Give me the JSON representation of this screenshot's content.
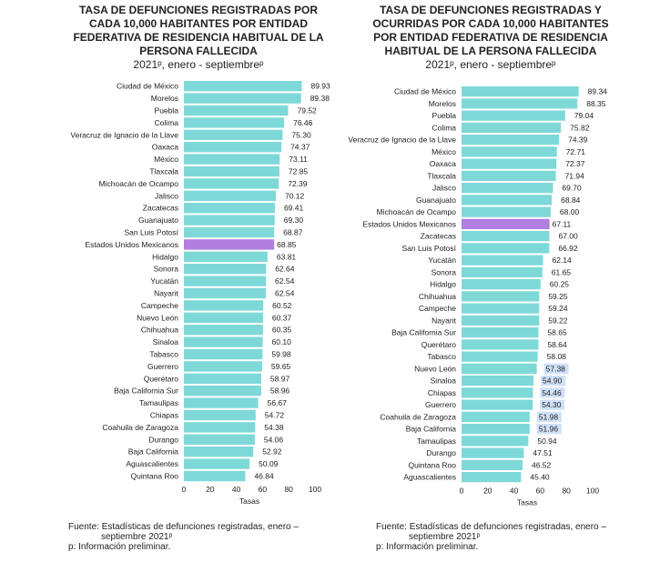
{
  "chart_data": [
    {
      "type": "bar",
      "orientation": "horizontal",
      "title": "TASA DE DEFUNCIONES REGISTRADAS POR CADA 10,000 HABITANTES POR ENTIDAD FEDERATIVA DE RESIDENCIA HABITUAL DE LA PERSONA FALLECIDA",
      "subtitle": "2021ᵖ, enero - septiembreᵖ",
      "xlabel": "Tasas",
      "xlim": [
        0,
        100
      ],
      "xticks": [
        "0",
        "20",
        "40",
        "60",
        "80",
        "100"
      ],
      "highlight": "Estados Unidos Mexicanos",
      "categories": [
        "Ciudad de México",
        "Morelos",
        "Puebla",
        "Colima",
        "Veracruz de Ignacio de la Llave",
        "Oaxaca",
        "México",
        "Tlaxcala",
        "Michoacán de Ocampo",
        "Jalisco",
        "Zacatecas",
        "Guanajuato",
        "San Luis Potosí",
        "Estados Unidos Mexicanos",
        "Hidalgo",
        "Sonora",
        "Yucatán",
        "Nayarit",
        "Campeche",
        "Nuevo León",
        "Chihuahua",
        "Sinaloa",
        "Tabasco",
        "Guerrero",
        "Querétaro",
        "Baja California Sur",
        "Tamaulipas",
        "Chiapas",
        "Coahuila de Zaragoza",
        "Durango",
        "Baja California",
        "Aguascalientes",
        "Quintana Roo"
      ],
      "values": [
        89.93,
        89.38,
        79.52,
        76.46,
        75.3,
        74.37,
        73.11,
        72.85,
        72.39,
        70.12,
        69.41,
        69.3,
        68.87,
        68.85,
        63.81,
        62.64,
        62.54,
        62.54,
        60.52,
        60.37,
        60.35,
        60.1,
        59.98,
        59.65,
        58.97,
        58.96,
        56.67,
        54.72,
        54.38,
        54.06,
        52.92,
        50.09,
        46.84
      ],
      "selected_labels": []
    },
    {
      "type": "bar",
      "orientation": "horizontal",
      "title": "TASA DE DEFUNCIONES REGISTRADAS Y OCURRIDAS POR CADA 10,000 HABITANTES POR ENTIDAD FEDERATIVA DE RESIDENCIA HABITUAL DE LA PERSONA FALLECIDA",
      "subtitle": "2021ᵖ, enero - septiembreᵖ",
      "xlabel": "Tasas",
      "xlim": [
        0,
        100
      ],
      "xticks": [
        "0",
        "20",
        "40",
        "60",
        "80",
        "100"
      ],
      "highlight": "Estados Unidos Mexicanos",
      "categories": [
        "Ciudad de México",
        "Morelos",
        "Puebla",
        "Colima",
        "Veracruz de Ignacio de la Llave",
        "México",
        "Oaxaca",
        "Tlaxcala",
        "Jalisco",
        "Guanajuato",
        "Michoacán de Ocampo",
        "Estados Unidos Mexicanos",
        "Zacatecas",
        "San Luis Potosí",
        "Yucatán",
        "Sonora",
        "Hidalgo",
        "Chihuahua",
        "Campeche",
        "Nayarit",
        "Baja California Sur",
        "Querétaro",
        "Tabasco",
        "Nuevo León",
        "Sinaloa",
        "Chiapas",
        "Guerrero",
        "Coahuila de Zaragoza",
        "Baja California",
        "Tamaulipas",
        "Durango",
        "Quintana Roo",
        "Aguascalientes"
      ],
      "values": [
        89.34,
        88.35,
        79.04,
        75.82,
        74.39,
        72.71,
        72.37,
        71.94,
        69.7,
        68.84,
        68.0,
        67.11,
        67.0,
        66.92,
        62.14,
        61.65,
        60.25,
        59.25,
        59.24,
        59.22,
        58.65,
        58.64,
        58.08,
        57.38,
        54.9,
        54.46,
        54.3,
        51.98,
        51.96,
        50.94,
        47.51,
        46.52,
        45.4
      ],
      "selected_labels": [
        "Nuevo León",
        "Sinaloa",
        "Chiapas",
        "Guerrero",
        "Coahuila de Zaragoza",
        "Baja California"
      ]
    }
  ],
  "colors": {
    "bar": "#7fd8d8",
    "highlight": "#b07fe0"
  },
  "footer": {
    "left": [
      "Fuente:  Estadísticas de defunciones registradas, enero –",
      "septiembre 2021ᵖ",
      "p: Información preliminar."
    ],
    "right": [
      "Fuente:  Estadísticas de defunciones registradas, enero –",
      "septiembre 2021ᵖ",
      "p: Información preliminar."
    ]
  }
}
